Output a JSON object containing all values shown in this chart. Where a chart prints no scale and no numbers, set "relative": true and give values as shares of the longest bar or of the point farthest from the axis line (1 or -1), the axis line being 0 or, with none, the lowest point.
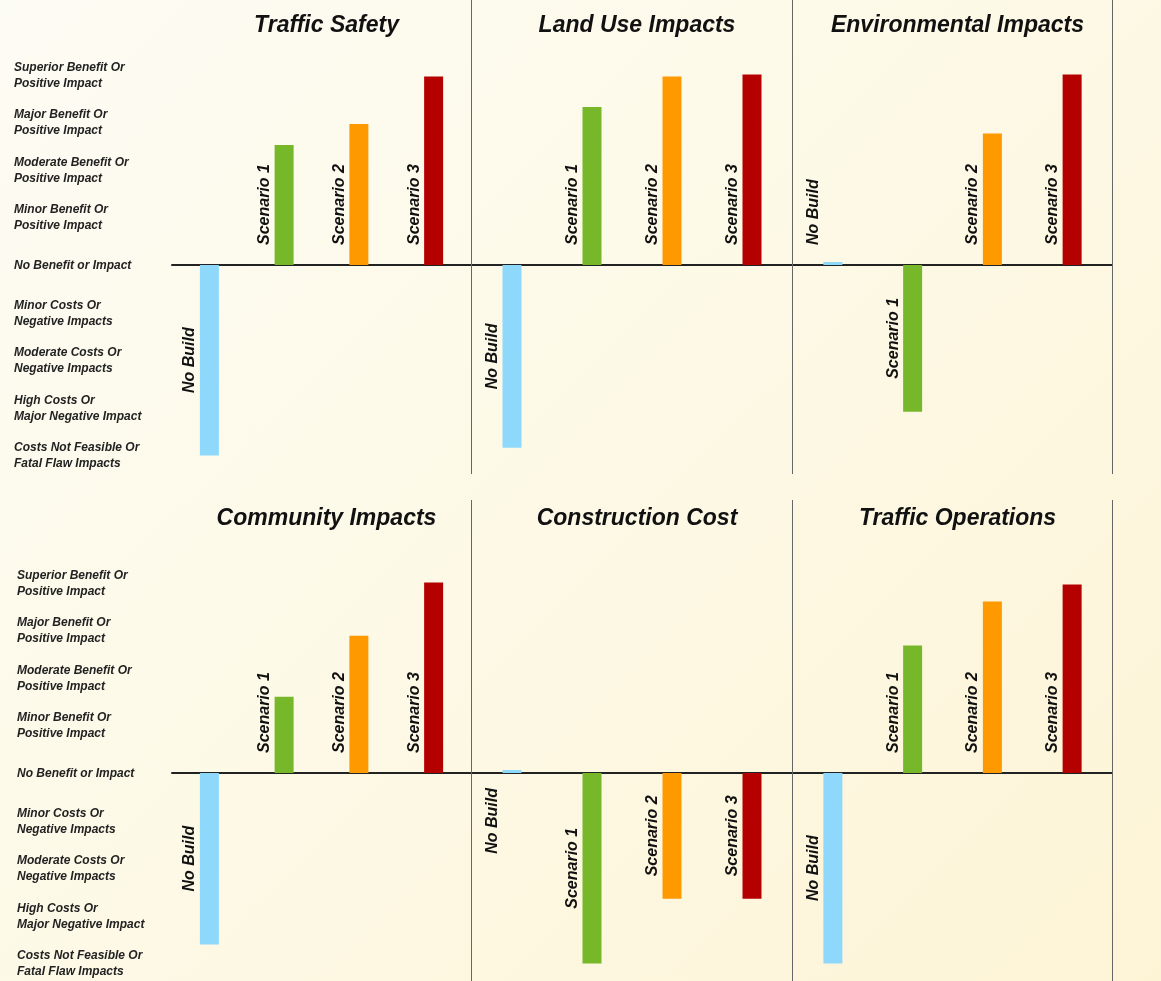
{
  "chart_data": [
    {
      "type": "bar",
      "title": "Traffic Safety",
      "categories": [
        "No Build",
        "Scenario 1",
        "Scenario 2",
        "Scenario 3"
      ],
      "values": [
        -1,
        0.63,
        0.74,
        0.99
      ],
      "colors": [
        "#8ed8fb",
        "#76b82a",
        "#ff9900",
        "#b50000"
      ],
      "relative": true,
      "annotations": [
        "Superior Benefit Or\nPositive Impact",
        "Major Benefit Or\nPositive Impact",
        "Moderate Benefit Or\nPositive Impact",
        "Minor Benefit Or\nPositive Impact",
        "No Benefit or Impact",
        "Minor Costs Or\nNegative Impacts",
        "Moderate Costs Or\nNegative Impacts",
        "High Costs Or\nMajor Negative Impact",
        "Costs Not Feasible Or\nFatal Flaw Impacts"
      ]
    },
    {
      "type": "bar",
      "title": "Land Use Impacts",
      "categories": [
        "No Build",
        "Scenario 1",
        "Scenario 2",
        "Scenario 3"
      ],
      "values": [
        -0.96,
        0.83,
        0.99,
        1
      ],
      "colors": [
        "#8ed8fb",
        "#76b82a",
        "#ff9900",
        "#b50000"
      ],
      "relative": true
    },
    {
      "type": "bar",
      "title": "Environmental Impacts",
      "categories": [
        "No Build",
        "Scenario 1",
        "Scenario 2",
        "Scenario 3"
      ],
      "values": [
        0,
        -0.77,
        0.69,
        1
      ],
      "colors": [
        "#8ed8fb",
        "#76b82a",
        "#ff9900",
        "#b50000"
      ],
      "relative": true
    },
    {
      "type": "bar",
      "title": "Community Impacts",
      "categories": [
        "No Build",
        "Scenario 1",
        "Scenario 2",
        "Scenario 3"
      ],
      "values": [
        -0.9,
        0.4,
        0.72,
        1
      ],
      "colors": [
        "#8ed8fb",
        "#76b82a",
        "#ff9900",
        "#b50000"
      ],
      "relative": true,
      "annotations": [
        "Superior Benefit Or\nPositive Impact",
        "Major Benefit Or\nPositive Impact",
        "Moderate Benefit Or\nPositive Impact",
        "Minor Benefit Or\nPositive Impact",
        "No Benefit or Impact",
        "Minor Costs Or\nNegative Impacts",
        "Moderate Costs Or\nNegative Impacts",
        "High Costs Or\nMajor Negative Impact",
        "Costs Not Feasible Or\nFatal Flaw Impacts"
      ]
    },
    {
      "type": "bar",
      "title": "Construction Cost",
      "categories": [
        "No Build",
        "Scenario 1",
        "Scenario 2",
        "Scenario 3"
      ],
      "values": [
        0,
        -1,
        -0.66,
        -0.66
      ],
      "colors": [
        "#8ed8fb",
        "#76b82a",
        "#ff9900",
        "#b50000"
      ],
      "relative": true
    },
    {
      "type": "bar",
      "title": "Traffic Operations",
      "categories": [
        "No Build",
        "Scenario 1",
        "Scenario 2",
        "Scenario 3"
      ],
      "values": [
        -1,
        0.67,
        0.9,
        0.99
      ],
      "colors": [
        "#8ed8fb",
        "#76b82a",
        "#ff9900",
        "#b50000"
      ],
      "relative": true
    }
  ]
}
